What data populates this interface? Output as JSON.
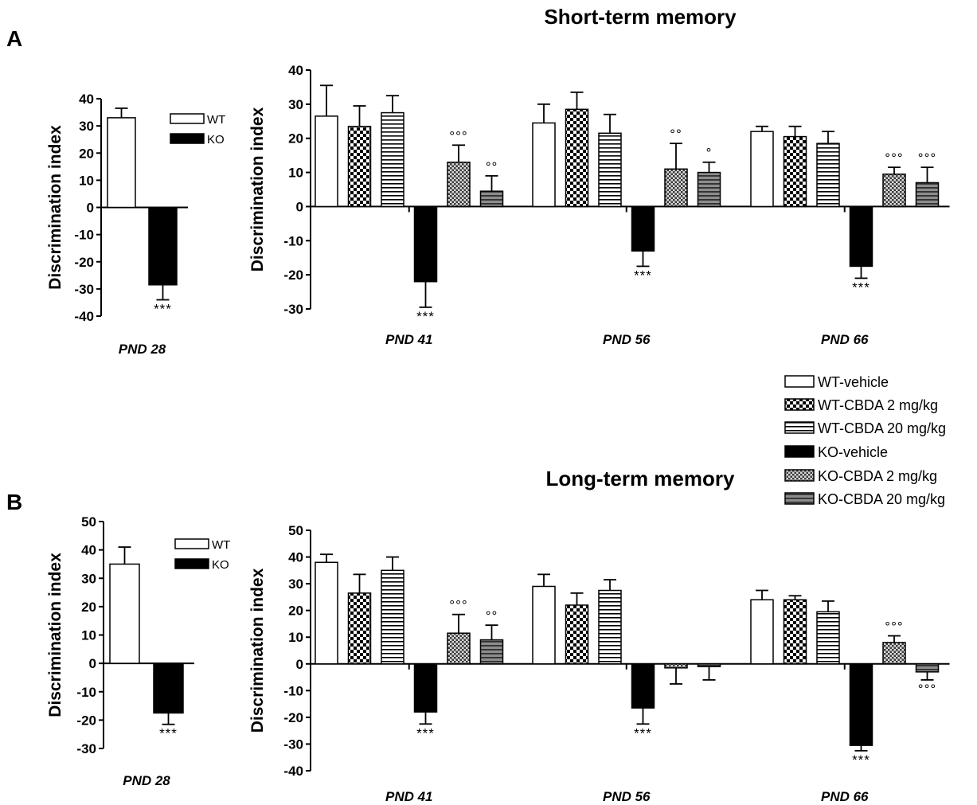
{
  "chart_data": [
    {
      "panel": "A",
      "type": "bar",
      "title": "",
      "ylabel": "Discrimination index",
      "ylim": [
        -40,
        40
      ],
      "yticks": [
        40,
        30,
        20,
        10,
        0,
        -10,
        -20,
        -30,
        -40
      ],
      "categories": [
        "PND 28"
      ],
      "series": [
        {
          "name": "WT",
          "values": [
            33
          ],
          "errors": [
            3.5
          ],
          "sig": [
            ""
          ]
        },
        {
          "name": "KO",
          "values": [
            -28.5
          ],
          "errors": [
            5.5
          ],
          "sig": [
            "***"
          ]
        }
      ],
      "legend": [
        "WT",
        "KO"
      ]
    },
    {
      "panel": "",
      "type": "bar",
      "title": "Short-term memory",
      "ylabel": "Discrimination index",
      "ylim": [
        -30,
        40
      ],
      "yticks": [
        40,
        30,
        20,
        10,
        0,
        -10,
        -20,
        -30
      ],
      "categories": [
        "PND 41",
        "PND 56",
        "PND 66"
      ],
      "series": [
        {
          "name": "WT-vehicle",
          "values": [
            26.5,
            24.5,
            22
          ],
          "errors": [
            9,
            5.5,
            1.5
          ],
          "sig": [
            "",
            "",
            ""
          ]
        },
        {
          "name": "WT-CBDA 2 mg/kg",
          "values": [
            23.5,
            28.5,
            20.5
          ],
          "errors": [
            6,
            5,
            3
          ],
          "sig": [
            "",
            "",
            ""
          ]
        },
        {
          "name": "WT-CBDA 20 mg/kg",
          "values": [
            27.5,
            21.5,
            18.5
          ],
          "errors": [
            5,
            5.5,
            3.5
          ],
          "sig": [
            "",
            "",
            ""
          ]
        },
        {
          "name": "KO-vehicle",
          "values": [
            -22,
            -13,
            -17.5
          ],
          "errors": [
            7.5,
            4.5,
            3.5
          ],
          "sig": [
            "***",
            "***",
            "***"
          ]
        },
        {
          "name": "KO-CBDA 2 mg/kg",
          "values": [
            13,
            11,
            9.5
          ],
          "errors": [
            5,
            7.5,
            2
          ],
          "sig": [
            "°°°",
            "°°",
            "°°°"
          ]
        },
        {
          "name": "KO-CBDA 20 mg/kg",
          "values": [
            4.5,
            10,
            7
          ],
          "errors": [
            4.5,
            3,
            4.5
          ],
          "sig": [
            "°°",
            "°",
            "°°°"
          ]
        }
      ]
    },
    {
      "panel": "B",
      "type": "bar",
      "title": "",
      "ylabel": "Discrimination index",
      "ylim": [
        -30,
        50
      ],
      "yticks": [
        50,
        40,
        30,
        20,
        10,
        0,
        -10,
        -20,
        -30
      ],
      "categories": [
        "PND 28"
      ],
      "series": [
        {
          "name": "WT",
          "values": [
            35
          ],
          "errors": [
            6
          ],
          "sig": [
            ""
          ]
        },
        {
          "name": "KO",
          "values": [
            -17.5
          ],
          "errors": [
            4
          ],
          "sig": [
            "***"
          ]
        }
      ],
      "legend": [
        "WT",
        "KO"
      ]
    },
    {
      "panel": "",
      "type": "bar",
      "title": "Long-term memory",
      "ylabel": "Discrimination index",
      "ylim": [
        -40,
        50
      ],
      "yticks": [
        50,
        40,
        30,
        20,
        10,
        0,
        -10,
        -20,
        -30,
        -40
      ],
      "categories": [
        "PND 41",
        "PND 56",
        "PND 66"
      ],
      "series": [
        {
          "name": "WT-vehicle",
          "values": [
            38,
            29,
            24
          ],
          "errors": [
            3,
            4.5,
            3.5
          ],
          "sig": [
            "",
            "",
            ""
          ]
        },
        {
          "name": "WT-CBDA 2 mg/kg",
          "values": [
            26.5,
            22,
            24
          ],
          "errors": [
            7,
            4.5,
            1.5
          ],
          "sig": [
            "",
            "",
            ""
          ]
        },
        {
          "name": "WT-CBDA 20 mg/kg",
          "values": [
            35,
            27.5,
            19.5
          ],
          "errors": [
            5,
            4,
            4
          ],
          "sig": [
            "",
            "",
            ""
          ]
        },
        {
          "name": "KO-vehicle",
          "values": [
            -18,
            -16.5,
            -30.5
          ],
          "errors": [
            4.5,
            6,
            2
          ],
          "sig": [
            "***",
            "***",
            "***"
          ]
        },
        {
          "name": "KO-CBDA 2 mg/kg",
          "values": [
            11.5,
            -1.5,
            8
          ],
          "errors": [
            7,
            6,
            2.5
          ],
          "sig": [
            "°°°",
            "",
            "°°°"
          ]
        },
        {
          "name": "KO-CBDA 20 mg/kg",
          "values": [
            9,
            -1,
            -3
          ],
          "errors": [
            5.5,
            5,
            3
          ],
          "sig": [
            "°°",
            "",
            "°°°"
          ]
        }
      ]
    }
  ],
  "legend": {
    "items": [
      "WT-vehicle",
      "WT-CBDA 2 mg/kg",
      "WT-CBDA 20 mg/kg",
      "KO-vehicle",
      "KO-CBDA 2 mg/kg",
      "KO-CBDA 20 mg/kg"
    ]
  },
  "fills": {
    "WT-vehicle": "white",
    "WT-CBDA 2 mg/kg": "checker",
    "WT-CBDA 20 mg/kg": "hstripe",
    "KO-vehicle": "black",
    "KO-CBDA 2 mg/kg": "dots",
    "KO-CBDA 20 mg/kg": "greystripe",
    "WT": "white",
    "KO": "black"
  }
}
